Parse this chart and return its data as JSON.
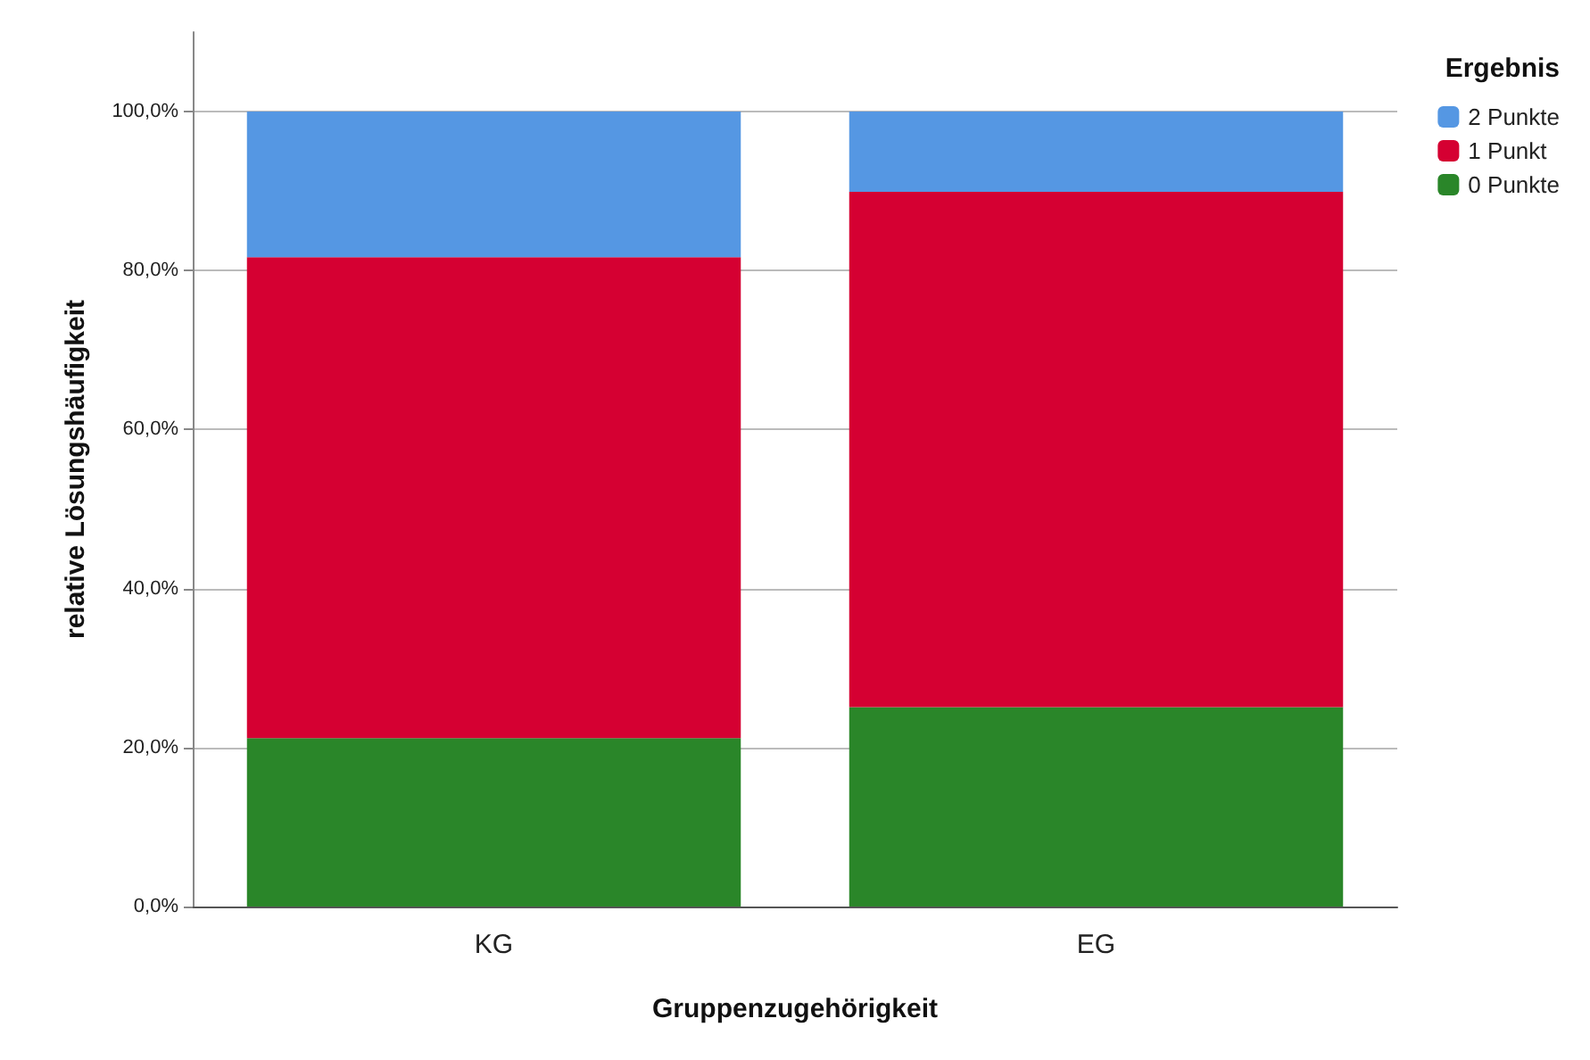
{
  "chart_data": {
    "type": "bar",
    "stacked": true,
    "xlabel": "Gruppenzugehörigkeit",
    "ylabel": "relative Lösungshäufigkeit",
    "legend_title": "Ergebnis",
    "legend": "top right",
    "grid": "y",
    "categories": [
      "KG",
      "EG"
    ],
    "series": [
      {
        "name": "0 Punkte",
        "color": "#2a8629",
        "values": [
          21.2,
          25.1
        ]
      },
      {
        "name": "1 Punkt",
        "color": "#d50032",
        "values": [
          60.5,
          64.8
        ]
      },
      {
        "name": "2 Punkte",
        "color": "#5597e3",
        "values": [
          18.3,
          10.1
        ]
      }
    ],
    "ylim": [
      0,
      110
    ],
    "yticks": [
      {
        "value": 0,
        "label": "0,0%"
      },
      {
        "value": 20,
        "label": "20,0%"
      },
      {
        "value": 40,
        "label": "40,0%"
      },
      {
        "value": 60,
        "label": "60,0%"
      },
      {
        "value": 80,
        "label": "80,0%"
      },
      {
        "value": 100,
        "label": "100,0%"
      }
    ]
  }
}
